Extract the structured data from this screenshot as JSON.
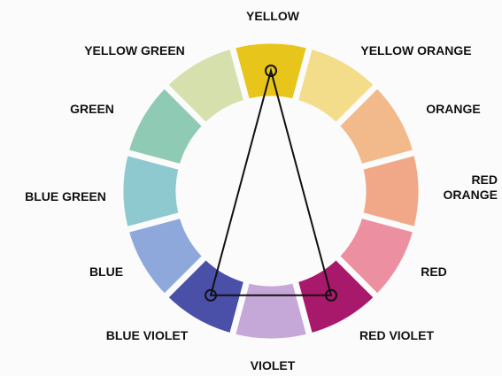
{
  "wheel": {
    "segments": [
      {
        "label": "YELLOW"
      },
      {
        "label": "YELLOW ORANGE"
      },
      {
        "label": "ORANGE"
      },
      {
        "label": "RED ORANGE"
      },
      {
        "label": "RED"
      },
      {
        "label": "RED VIOLET"
      },
      {
        "label": "VIOLET"
      },
      {
        "label": "BLUE VIOLET"
      },
      {
        "label": "BLUE"
      },
      {
        "label": "BLUE GREEN"
      },
      {
        "label": "GREEN"
      },
      {
        "label": "YELLOW GREEN"
      }
    ]
  }
}
